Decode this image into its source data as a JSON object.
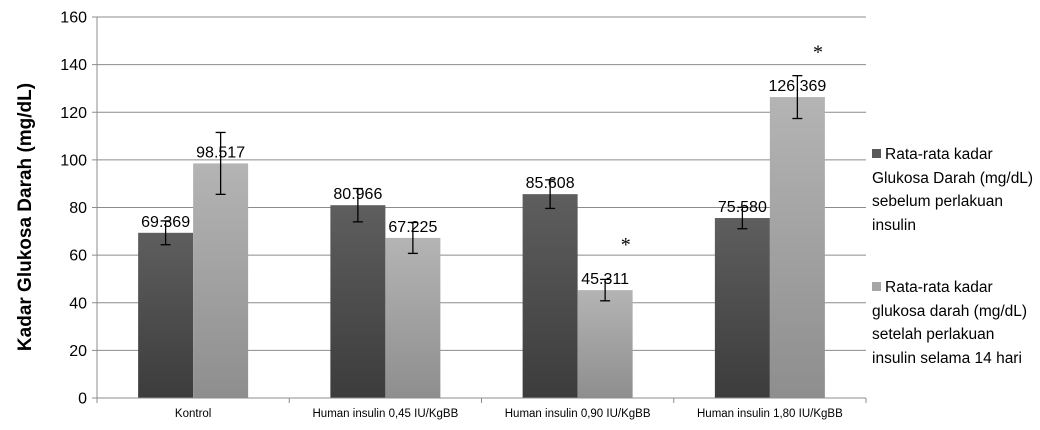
{
  "chart_data": {
    "type": "bar",
    "title": "",
    "xlabel": "",
    "ylabel": "Kadar Glukosa Darah (mg/dL)",
    "ylim": [
      0,
      160
    ],
    "yticks": [
      0,
      20,
      40,
      60,
      80,
      100,
      120,
      140,
      160
    ],
    "grid": true,
    "legend_position": "right",
    "categories": [
      "Kontrol",
      "Human insulin 0,45 IU/KgBB",
      "Human insulin 0,90 IU/KgBB",
      "Human insulin 1,80 IU/KgBB"
    ],
    "series": [
      {
        "name": "Rata-rata kadar Glukosa Darah (mg/dL) sebelum perlakuan insulin",
        "values": [
          69.369,
          80.966,
          85.608,
          75.58
        ],
        "labels": [
          "69.369",
          "80.966",
          "85.608",
          "75.580"
        ],
        "errors": [
          5,
          7,
          6,
          4.5
        ],
        "color": "#595959"
      },
      {
        "name": "Rata-rata kadar glukosa darah (mg/dL) setelah perlakuan insulin selama 14 hari",
        "values": [
          98.517,
          67.225,
          45.311,
          126.369
        ],
        "labels": [
          "98.517",
          "67.225",
          "45.311",
          "126.369"
        ],
        "errors": [
          13,
          6.5,
          4.5,
          9
        ],
        "color": "#a6a6a6"
      }
    ],
    "annotations": [
      {
        "text": "*",
        "x_category": 2.75,
        "y": 65
      },
      {
        "text": "*",
        "x_category": 3.75,
        "y": 146
      }
    ]
  }
}
